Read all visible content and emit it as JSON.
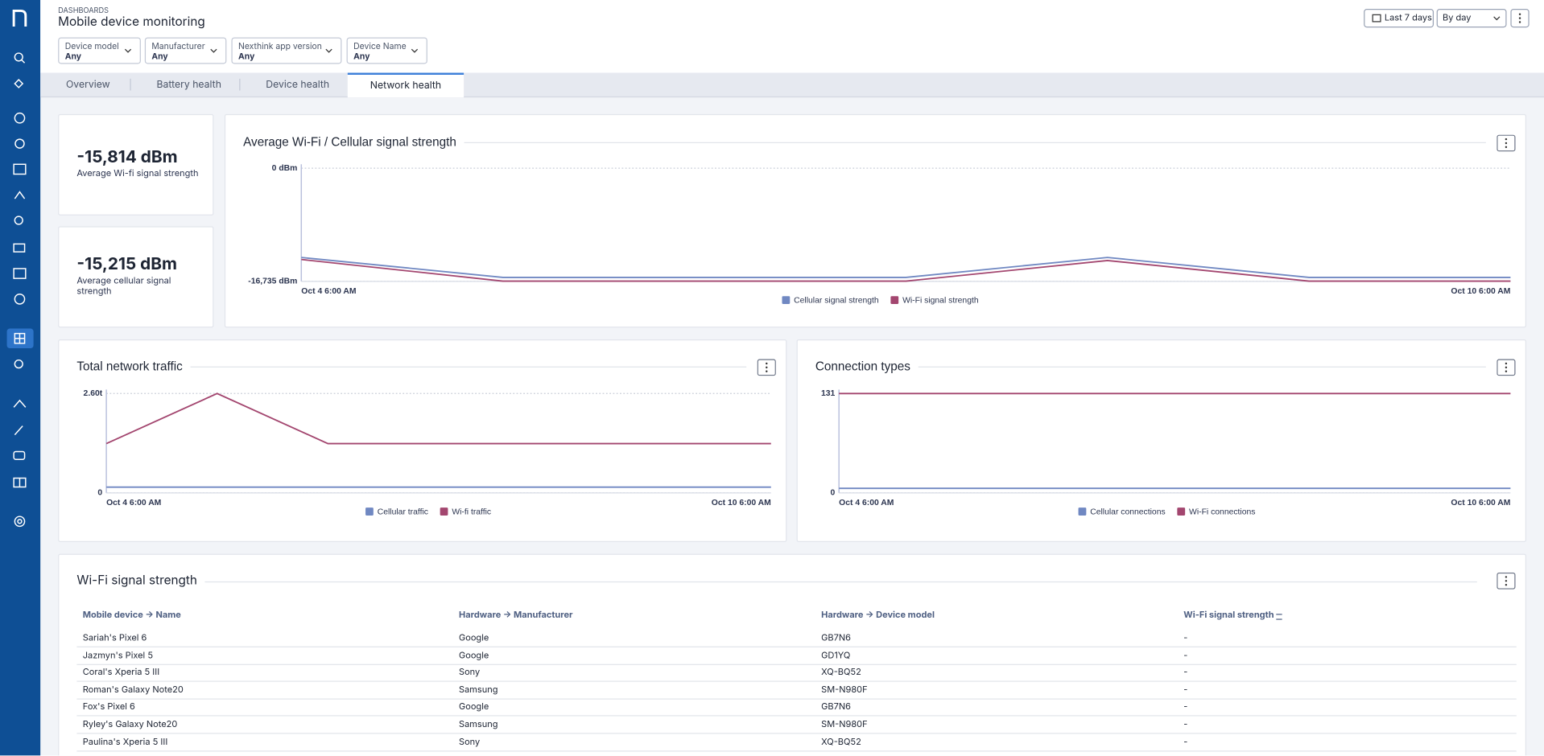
{
  "header": {
    "breadcrumb": "DASHBOARDS",
    "title": "Mobile device monitoring",
    "time_range": "Last 7 days",
    "granularity": "By day",
    "filters": [
      {
        "label": "Device model",
        "value": "Any"
      },
      {
        "label": "Manufacturer",
        "value": "Any"
      },
      {
        "label": "Nexthink app version",
        "value": "Any"
      },
      {
        "label": "Device Name",
        "value": "Any"
      }
    ]
  },
  "tabs": {
    "items": [
      "Overview",
      "Battery health",
      "Device health",
      "Network health"
    ],
    "active": 3
  },
  "kpis": [
    {
      "value": "-15,814 dBm",
      "label": "Average Wi-fi signal strength"
    },
    {
      "value": "-15,215 dBm",
      "label": "Average cellular signal strength"
    }
  ],
  "charts": [
    {
      "type": "line",
      "title": "Average Wi-Fi / Cellular signal strength",
      "categories": [
        "Oct 4 6:00 AM",
        null,
        null,
        null,
        null,
        null,
        "Oct 10 6:00 AM"
      ],
      "series": [
        {
          "name": "Cellular signal strength",
          "color": "#7088c2",
          "values": [
            -13200,
            -16150,
            -16150,
            -16150,
            -13200,
            -16150,
            -16150
          ]
        },
        {
          "name": "Wi-Fi signal strength",
          "color": "#a3466f",
          "values": [
            -13500,
            -16700,
            -16700,
            -16700,
            -13650,
            -16700,
            -16700
          ]
        }
      ],
      "ylim": [
        -16735,
        0
      ],
      "yticks": [
        {
          "value": -16735,
          "label": "-16,735 dBm"
        },
        {
          "value": 0,
          "label": "0 dBm"
        }
      ],
      "grid": true
    },
    {
      "type": "line",
      "title": "Total network traffic",
      "categories": [
        "Oct 4 6:00 AM",
        null,
        null,
        null,
        null,
        null,
        "Oct 10 6:00 AM"
      ],
      "series": [
        {
          "name": "Cellular traffic",
          "color": "#7088c2",
          "values": [
            150000000000,
            150000000000,
            150000000000,
            150000000000,
            150000000000,
            150000000000,
            150000000000
          ]
        },
        {
          "name": "Wi-fi traffic",
          "color": "#a3466f",
          "values": [
            1290000000000,
            2600000000000,
            1290000000000,
            1290000000000,
            1290000000000,
            1290000000000,
            1290000000000
          ]
        }
      ],
      "ylim": [
        0,
        2600000000000
      ],
      "yticks": [
        0,
        {
          "value": 2600000000000,
          "label": "2.60t"
        }
      ],
      "grid": true
    },
    {
      "type": "line",
      "title": "Connection types",
      "categories": [
        "Oct 4 6:00 AM",
        null,
        null,
        null,
        null,
        null,
        "Oct 10 6:00 AM"
      ],
      "series": [
        {
          "name": "Cellular connections",
          "color": "#7088c2",
          "values": [
            6,
            6,
            6,
            6,
            6,
            6,
            6
          ]
        },
        {
          "name": "Wi-Fi connections",
          "color": "#a3466f",
          "values": [
            131,
            131,
            131,
            131,
            131,
            131,
            131
          ]
        }
      ],
      "ylim": [
        0,
        131
      ],
      "yticks": [
        0,
        131
      ],
      "grid": true
    }
  ],
  "table": {
    "title": "Wi-Fi signal strength",
    "columns": [
      "Mobile device → Name",
      "Hardware → Manufacturer",
      "Hardware → Device model",
      "Wi-Fi signal strength"
    ],
    "rows": [
      [
        "Sariah's Pixel 6",
        "Google",
        "GB7N6",
        "-"
      ],
      [
        "Jazmyn's Pixel 5",
        "Google",
        "GD1YQ",
        "-"
      ],
      [
        "Coral's Xperia 5 III",
        "Sony",
        "XQ-BQ52",
        "-"
      ],
      [
        "Roman's Galaxy Note20",
        "Samsung",
        "SM-N980F",
        "-"
      ],
      [
        "Fox's Pixel 6",
        "Google",
        "GB7N6",
        "-"
      ],
      [
        "Ryley's Galaxy Note20",
        "Samsung",
        "SM-N980F",
        "-"
      ],
      [
        "Paulina's Xperia 5 III",
        "Sony",
        "XQ-BQ52",
        "-"
      ]
    ]
  }
}
